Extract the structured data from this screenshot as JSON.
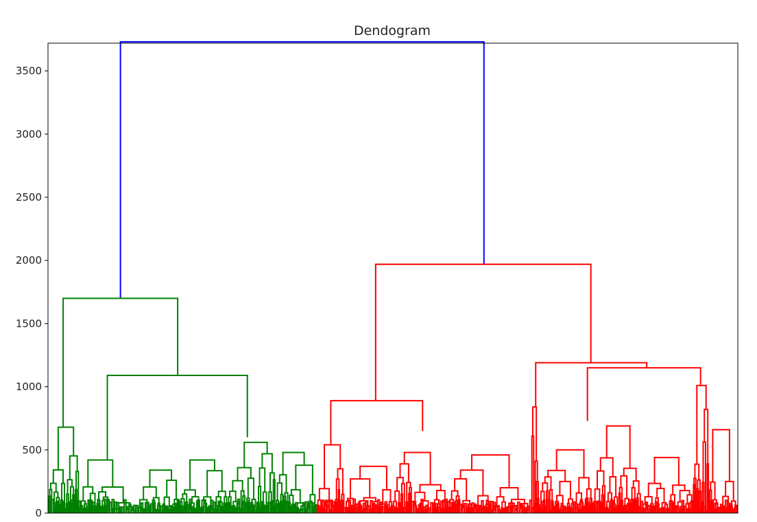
{
  "chart_data": {
    "type": "dendrogram",
    "title": "Dendogram",
    "xlabel": "",
    "ylabel": "",
    "ylim": [
      0,
      3720
    ],
    "yticks": [
      0,
      500,
      1000,
      1500,
      2000,
      2500,
      3000,
      3500
    ],
    "x_tick_labels": false,
    "grid": false,
    "colors": {
      "root": "#0000ff",
      "cluster_1": "#008000",
      "cluster_2": "#ff0000"
    },
    "clusters": [
      {
        "color": "cluster_1",
        "leaf_fraction": 0.39,
        "merge_height": 1700
      },
      {
        "color": "cluster_2",
        "leaf_fraction": 0.61,
        "merge_height": 1970
      }
    ],
    "root_merge_height": 3730,
    "major_links": [
      {
        "color": "root",
        "left_x": 0.105,
        "left_height": 1700,
        "right_x": 0.632,
        "right_height": 1970,
        "height": 3730
      },
      {
        "color": "cluster_1",
        "left_x": 0.022,
        "left_height": 680,
        "right_x": 0.188,
        "right_height": 1090,
        "height": 1700
      },
      {
        "color": "cluster_1",
        "left_x": 0.086,
        "left_height": 420,
        "right_x": 0.289,
        "right_height": 600,
        "height": 1090
      },
      {
        "color": "cluster_2",
        "left_x": 0.475,
        "left_height": 890,
        "right_x": 0.787,
        "right_height": 1190,
        "height": 1970
      },
      {
        "color": "cluster_2",
        "left_x": 0.41,
        "left_height": 540,
        "right_x": 0.543,
        "right_height": 650,
        "height": 890
      },
      {
        "color": "cluster_2",
        "left_x": 0.707,
        "left_height": 840,
        "right_x": 0.868,
        "right_height": 1150,
        "height": 1190
      },
      {
        "color": "cluster_2",
        "left_x": 0.782,
        "left_height": 730,
        "right_x": 0.946,
        "right_height": 1010,
        "height": 1150
      }
    ]
  }
}
